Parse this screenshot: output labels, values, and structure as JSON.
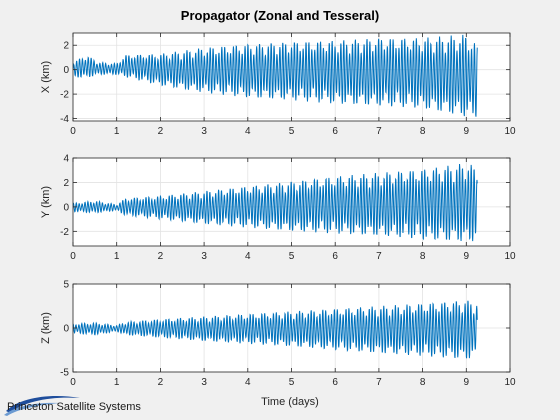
{
  "figure": {
    "title": "Propagator (Zonal and Tesseral)",
    "xlabel": "Time (days)"
  },
  "logo": {
    "text": "Princeton Satellite Systems"
  },
  "colors": {
    "line": "#0072bd",
    "axes_bg": "#ffffff",
    "figure_bg": "#f0f0f0",
    "grid": "#e3e3e3",
    "axis": "#262626"
  },
  "chart_data": [
    {
      "type": "line",
      "name": "x-position",
      "ylabel": "X (km)",
      "xlim": [
        0,
        10
      ],
      "ylim": [
        -4.2,
        3
      ],
      "xticks": [
        0,
        1,
        2,
        3,
        4,
        5,
        6,
        7,
        8,
        9,
        10
      ],
      "yticks": [
        -4,
        -2,
        0,
        2
      ],
      "grid": true,
      "series": [
        {
          "time_range_days": [
            0,
            9.25
          ],
          "envelope": {
            "t": [
              0,
              0.3,
              0.6,
              1.0,
              1.2,
              2.0,
              3.0,
              4.0,
              5.0,
              6.0,
              7.0,
              8.0,
              9.0,
              9.25
            ],
            "max": [
              0.6,
              1.2,
              0.6,
              0.5,
              1.2,
              1.3,
              1.8,
              2.1,
              2.3,
              2.4,
              2.6,
              2.6,
              2.9,
              2.0
            ],
            "min": [
              -0.6,
              -0.7,
              -0.4,
              -0.4,
              -0.6,
              -1.3,
              -1.9,
              -2.3,
              -2.5,
              -2.8,
              -3.0,
              -3.2,
              -3.9,
              -3.9
            ]
          }
        }
      ]
    },
    {
      "type": "line",
      "name": "y-position",
      "ylabel": "Y (km)",
      "xlim": [
        0,
        10
      ],
      "ylim": [
        -3.2,
        4
      ],
      "xticks": [
        0,
        1,
        2,
        3,
        4,
        5,
        6,
        7,
        8,
        9,
        10
      ],
      "yticks": [
        -2,
        0,
        2,
        4
      ],
      "grid": true,
      "series": [
        {
          "time_range_days": [
            0,
            9.25
          ],
          "envelope": {
            "t": [
              0,
              0.5,
              1.0,
              1.2,
              2.0,
              3.0,
              4.0,
              5.0,
              6.0,
              7.0,
              8.0,
              9.0,
              9.25
            ],
            "max": [
              0.3,
              0.5,
              0.2,
              0.7,
              0.9,
              1.3,
              1.7,
              2.1,
              2.5,
              2.8,
              3.1,
              3.6,
              3.3
            ],
            "min": [
              -0.4,
              -0.5,
              -0.3,
              -0.7,
              -1.0,
              -1.4,
              -1.7,
              -2.0,
              -2.2,
              -2.4,
              -2.7,
              -2.9,
              -2.8
            ]
          }
        }
      ]
    },
    {
      "type": "line",
      "name": "z-position",
      "ylabel": "Z (km)",
      "xlim": [
        0,
        10
      ],
      "ylim": [
        -5,
        5
      ],
      "xticks": [
        0,
        1,
        2,
        3,
        4,
        5,
        6,
        7,
        8,
        9,
        10
      ],
      "yticks": [
        -5,
        0,
        5
      ],
      "grid": true,
      "series": [
        {
          "time_range_days": [
            0,
            9.25
          ],
          "envelope": {
            "t": [
              0,
              0.5,
              1.0,
              1.2,
              2.0,
              3.0,
              4.0,
              5.0,
              6.0,
              7.0,
              8.0,
              9.0,
              9.25
            ],
            "max": [
              0.5,
              0.6,
              0.3,
              0.7,
              1.0,
              1.3,
              1.6,
              1.9,
              2.2,
              2.5,
              2.8,
              3.2,
              3.0
            ],
            "min": [
              -0.6,
              -0.8,
              -0.4,
              -0.8,
              -1.1,
              -1.5,
              -1.8,
              -2.1,
              -2.5,
              -2.9,
              -3.2,
              -3.6,
              -3.4
            ]
          }
        }
      ]
    }
  ]
}
